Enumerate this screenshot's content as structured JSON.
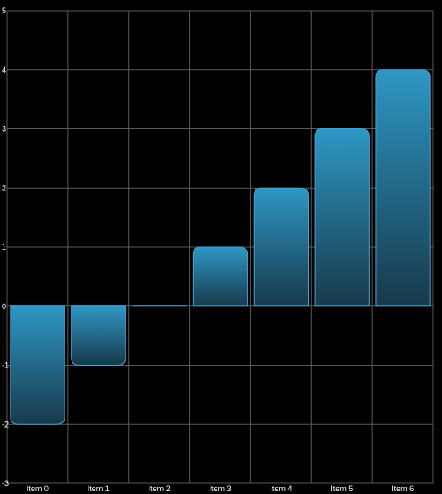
{
  "chart_data": {
    "type": "bar",
    "title": "",
    "xlabel": "",
    "ylabel": "",
    "categories": [
      "Item 0",
      "Item 1",
      "Item 2",
      "Item 3",
      "Item 4",
      "Item 5",
      "Item 6"
    ],
    "values": [
      -2,
      -1,
      0,
      1,
      2,
      3,
      4
    ],
    "ylim": [
      -3,
      5
    ],
    "yticks": [
      "-3",
      "-2",
      "-1",
      "0",
      "1",
      "2",
      "3",
      "4",
      "5"
    ],
    "grid": true,
    "legend": "none",
    "colors": {
      "background": "#000000",
      "grid": "#5a5a5a",
      "bar_top": "#2e97c4",
      "bar_bottom": "#17394b",
      "bar_stroke": "#3fa7d6",
      "text": "#ffffff"
    }
  }
}
